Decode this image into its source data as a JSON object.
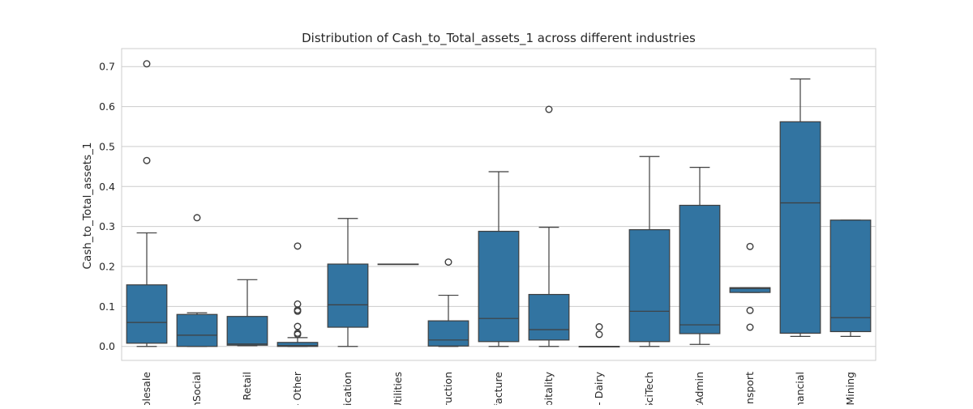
{
  "chart_data": {
    "type": "box",
    "title": "Distribution of Cash_to_Total_assets_1 across different industries",
    "xlabel": "",
    "ylabel": "Cash_to_Total_assets_1",
    "ylim": [
      -0.035,
      0.745
    ],
    "yticks": [
      0.0,
      0.1,
      0.2,
      0.3,
      0.4,
      0.5,
      0.6,
      0.7
    ],
    "ytick_labels": [
      "0.0",
      "0.1",
      "0.2",
      "0.3",
      "0.4",
      "0.5",
      "0.6",
      "0.7"
    ],
    "grid": "horizontal",
    "box_color": "#3274a1",
    "line_color": "#3f3f3f",
    "grid_color": "#cccccc",
    "categories": [
      "olesale",
      "nSocial",
      "Retail",
      "- Other",
      "ication",
      "Utilities",
      "truction",
      "facture",
      "spitality",
      "- Dairy",
      "SciTech",
      "tAdmin",
      "ansport",
      "nancial",
      "Mining"
    ],
    "boxes": [
      {
        "whislo": 0.0,
        "q1": 0.008,
        "med": 0.06,
        "q3": 0.154,
        "whishi": 0.284,
        "fliers": [
          0.465,
          0.707
        ]
      },
      {
        "whislo": 0.0,
        "q1": 0.0,
        "med": 0.028,
        "q3": 0.08,
        "whishi": 0.084,
        "fliers": [
          0.322
        ]
      },
      {
        "whislo": 0.002,
        "q1": 0.003,
        "med": 0.006,
        "q3": 0.075,
        "whishi": 0.167,
        "fliers": []
      },
      {
        "whislo": 0.0,
        "q1": 0.0,
        "med": 0.002,
        "q3": 0.01,
        "whishi": 0.022,
        "fliers": [
          0.03,
          0.033,
          0.05,
          0.088,
          0.091,
          0.106,
          0.251
        ]
      },
      {
        "whislo": 0.0,
        "q1": 0.048,
        "med": 0.104,
        "q3": 0.206,
        "whishi": 0.32,
        "fliers": []
      },
      {
        "whislo": 0.206,
        "q1": 0.206,
        "med": 0.206,
        "q3": 0.206,
        "whishi": 0.206,
        "fliers": []
      },
      {
        "whislo": 0.0,
        "q1": 0.001,
        "med": 0.016,
        "q3": 0.064,
        "whishi": 0.128,
        "fliers": [
          0.211
        ]
      },
      {
        "whislo": 0.0,
        "q1": 0.012,
        "med": 0.07,
        "q3": 0.288,
        "whishi": 0.437,
        "fliers": []
      },
      {
        "whislo": 0.0,
        "q1": 0.016,
        "med": 0.042,
        "q3": 0.13,
        "whishi": 0.298,
        "fliers": [
          0.593
        ]
      },
      {
        "whislo": 0.0,
        "q1": 0.0,
        "med": 0.0,
        "q3": 0.0,
        "whishi": 0.0,
        "fliers": [
          0.03,
          0.049
        ]
      },
      {
        "whislo": 0.0,
        "q1": 0.012,
        "med": 0.088,
        "q3": 0.292,
        "whishi": 0.475,
        "fliers": []
      },
      {
        "whislo": 0.005,
        "q1": 0.032,
        "med": 0.054,
        "q3": 0.353,
        "whishi": 0.448,
        "fliers": []
      },
      {
        "whislo": 0.135,
        "q1": 0.135,
        "med": 0.145,
        "q3": 0.147,
        "whishi": 0.147,
        "fliers": [
          0.048,
          0.09,
          0.25
        ]
      },
      {
        "whislo": 0.025,
        "q1": 0.033,
        "med": 0.359,
        "q3": 0.562,
        "whishi": 0.669,
        "fliers": []
      },
      {
        "whislo": 0.025,
        "q1": 0.037,
        "med": 0.072,
        "q3": 0.316,
        "whishi": 0.316,
        "fliers": []
      }
    ]
  }
}
